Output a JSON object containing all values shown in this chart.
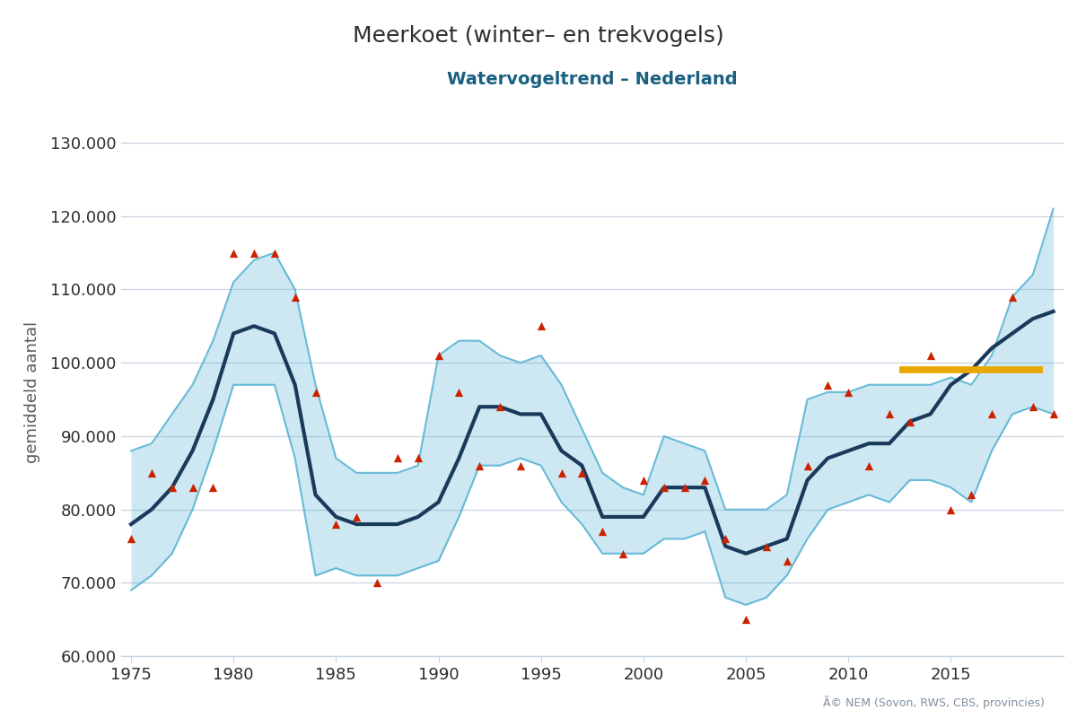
{
  "title": "Meerkoet (winter– en trekvogels)",
  "subtitle": "Watervogeltrend – Nederland",
  "ylabel": "gemiddeld aantal",
  "copyright": "Ã© NEM (Sovon, RWS, CBS, provincies)",
  "title_color": "#2d2d2d",
  "subtitle_color": "#1a6080",
  "ylabel_color": "#5a5a5a",
  "background_color": "#ffffff",
  "grid_color": "#c8d4e0",
  "ylim": [
    60000,
    132000
  ],
  "yticks": [
    60000,
    70000,
    80000,
    90000,
    100000,
    110000,
    120000,
    130000
  ],
  "xlim": [
    1974.5,
    2020.5
  ],
  "xticks": [
    1975,
    1980,
    1985,
    1990,
    1995,
    2000,
    2005,
    2010,
    2015
  ],
  "trend_color": "#1a3a5c",
  "ci_color": "#5ab4d4",
  "ci_alpha": 0.3,
  "marker_color": "#cc2200",
  "reference_color": "#e8a800",
  "reference_y": 99000,
  "reference_x_start": 2012.5,
  "reference_x_end": 2019.5,
  "trend_years": [
    1975,
    1976,
    1977,
    1978,
    1979,
    1980,
    1981,
    1982,
    1983,
    1984,
    1985,
    1986,
    1987,
    1988,
    1989,
    1990,
    1991,
    1992,
    1993,
    1994,
    1995,
    1996,
    1997,
    1998,
    1999,
    2000,
    2001,
    2002,
    2003,
    2004,
    2005,
    2006,
    2007,
    2008,
    2009,
    2010,
    2011,
    2012,
    2013,
    2014,
    2015,
    2016,
    2017,
    2018,
    2019,
    2020
  ],
  "trend_values": [
    78000,
    80000,
    83000,
    88000,
    95000,
    104000,
    105000,
    104000,
    97000,
    82000,
    79000,
    78000,
    78000,
    78000,
    79000,
    81000,
    87000,
    94000,
    94000,
    93000,
    93000,
    88000,
    86000,
    79000,
    79000,
    79000,
    83000,
    83000,
    83000,
    75000,
    74000,
    75000,
    76000,
    84000,
    87000,
    88000,
    89000,
    89000,
    92000,
    93000,
    97000,
    99000,
    102000,
    104000,
    106000,
    107000
  ],
  "ci_upper": [
    88000,
    89000,
    93000,
    97000,
    103000,
    111000,
    114000,
    115000,
    110000,
    97000,
    87000,
    85000,
    85000,
    85000,
    86000,
    101000,
    103000,
    103000,
    101000,
    100000,
    101000,
    97000,
    91000,
    85000,
    83000,
    82000,
    90000,
    89000,
    88000,
    80000,
    80000,
    80000,
    82000,
    95000,
    96000,
    96000,
    97000,
    97000,
    97000,
    97000,
    98000,
    97000,
    101000,
    109000,
    112000,
    121000
  ],
  "ci_lower": [
    69000,
    71000,
    74000,
    80000,
    88000,
    97000,
    97000,
    97000,
    87000,
    71000,
    72000,
    71000,
    71000,
    71000,
    72000,
    73000,
    79000,
    86000,
    86000,
    87000,
    86000,
    81000,
    78000,
    74000,
    74000,
    74000,
    76000,
    76000,
    77000,
    68000,
    67000,
    68000,
    71000,
    76000,
    80000,
    81000,
    82000,
    81000,
    84000,
    84000,
    83000,
    81000,
    88000,
    93000,
    94000,
    93000
  ],
  "obs_years": [
    1975,
    1976,
    1977,
    1978,
    1979,
    1980,
    1981,
    1982,
    1983,
    1984,
    1985,
    1986,
    1987,
    1988,
    1989,
    1990,
    1991,
    1992,
    1993,
    1994,
    1995,
    1996,
    1997,
    1998,
    1999,
    2000,
    2001,
    2002,
    2003,
    2004,
    2005,
    2006,
    2007,
    2008,
    2009,
    2010,
    2011,
    2012,
    2013,
    2014,
    2015,
    2016,
    2017,
    2018,
    2019,
    2020
  ],
  "obs_values": [
    76000,
    85000,
    83000,
    83000,
    83000,
    115000,
    115000,
    115000,
    109000,
    96000,
    78000,
    79000,
    70000,
    87000,
    87000,
    101000,
    96000,
    86000,
    94000,
    86000,
    105000,
    85000,
    85000,
    77000,
    74000,
    84000,
    83000,
    83000,
    84000,
    76000,
    65000,
    75000,
    73000,
    86000,
    97000,
    96000,
    86000,
    93000,
    92000,
    101000,
    80000,
    82000,
    93000,
    109000,
    94000,
    93000
  ]
}
